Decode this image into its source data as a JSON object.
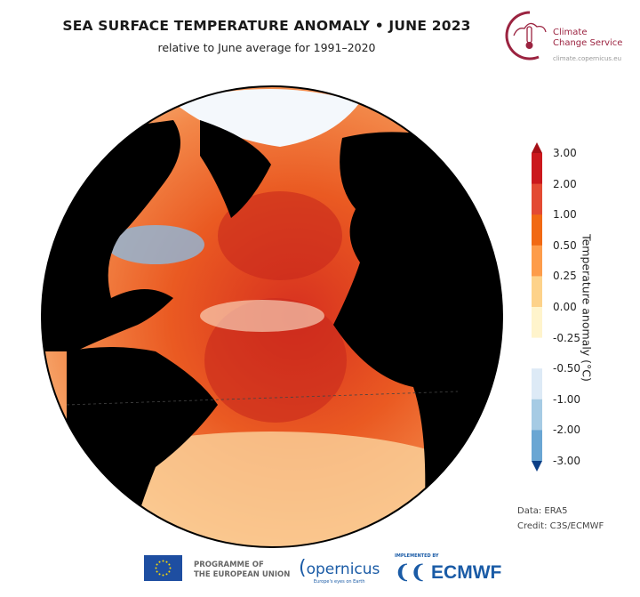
{
  "header": {
    "title": "SEA SURFACE TEMPERATURE ANOMALY • JUNE 2023",
    "subtitle": "relative to June average for 1991–2020"
  },
  "logo_c3s": {
    "name_line1": "Climate",
    "name_line2": "Change Service",
    "url": "climate.copernicus.eu"
  },
  "colorbar": {
    "title": "Temperature anomaly (°C)",
    "ticks": [
      "3.00",
      "2.00",
      "1.00",
      "0.50",
      "0.25",
      "0.00",
      "-0.25",
      "-0.50",
      "-1.00",
      "-2.00",
      "-3.00"
    ],
    "colors": [
      "#a50f15",
      "#cb181d",
      "#e34a33",
      "#f16913",
      "#fd9c4a",
      "#fdd28a",
      "#fff4cc",
      "#ffffff",
      "#ddeaf6",
      "#a6cbe4",
      "#6aa6d3",
      "#2f74b5",
      "#0b3f86"
    ]
  },
  "credits": {
    "data": "Data: ERA5",
    "credit": "Credit: C3S/ECMWF"
  },
  "footer": {
    "eu": "PROGRAMME OF\nTHE EUROPEAN UNION",
    "eu_line1": "PROGRAMME OF",
    "eu_line2": "THE EUROPEAN UNION",
    "copernicus": "opernicus",
    "copernicus_tagline": "Europe's eyes on Earth",
    "ecmwf_sup": "IMPLEMENTED BY",
    "ecmwf": "ECMWF"
  }
}
